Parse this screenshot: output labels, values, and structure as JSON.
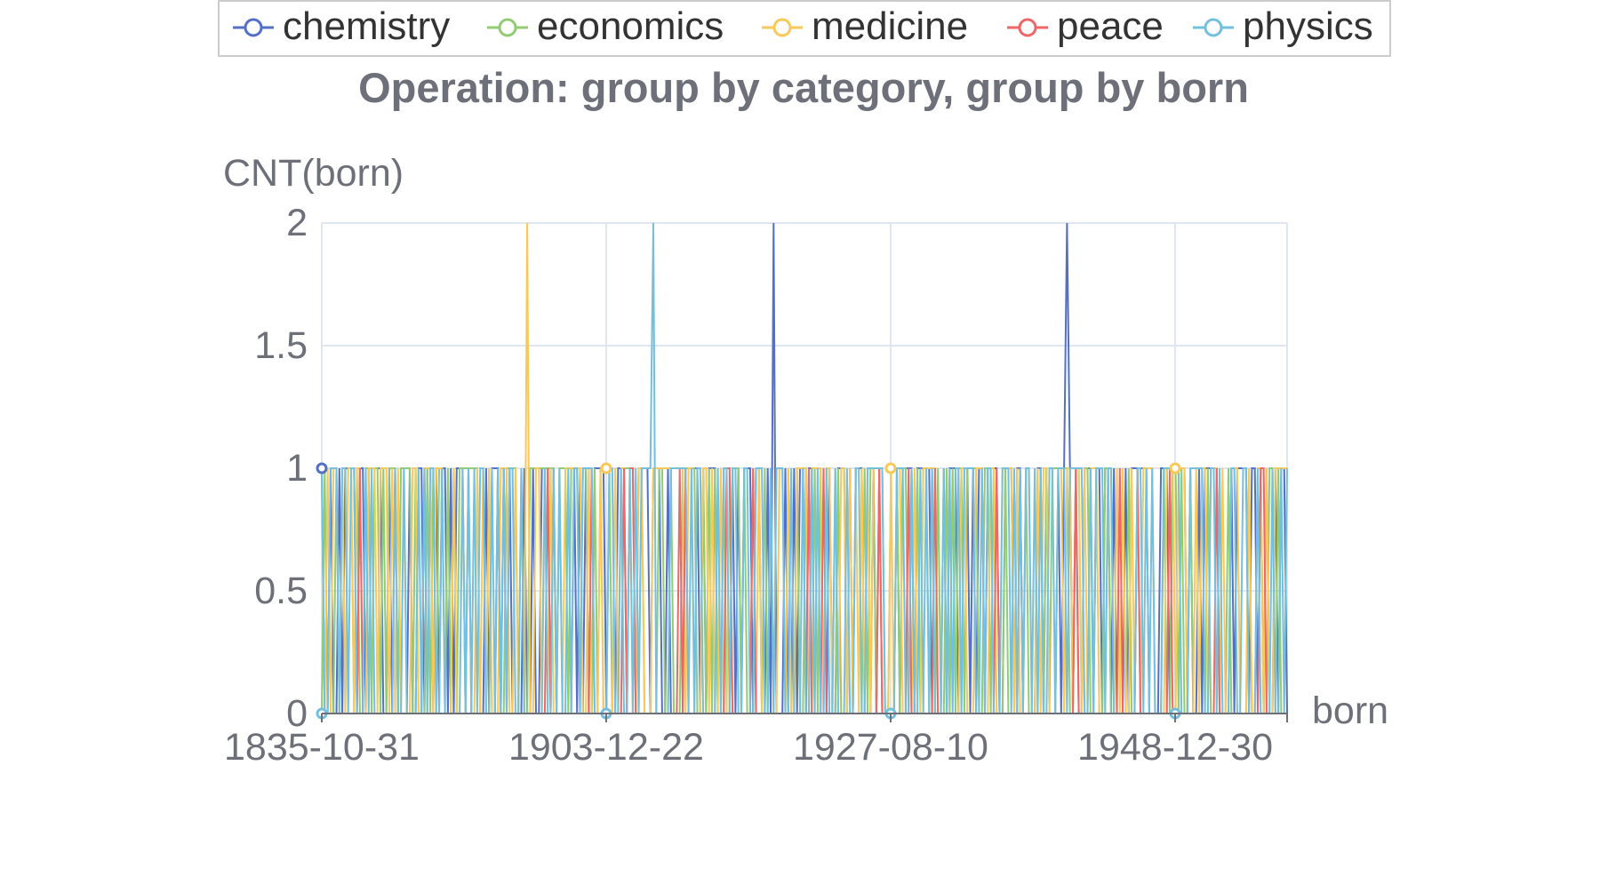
{
  "chart_data": {
    "type": "line",
    "title": "Operation: group by category, group by born",
    "xlabel": "born",
    "ylabel": "CNT(born)",
    "ylim": [
      0,
      2
    ],
    "yticks": [
      "0",
      "0.5",
      "1",
      "1.5",
      "2"
    ],
    "xticks": [
      "1835-10-31",
      "1903-12-22",
      "1927-08-10",
      "1948-12-30"
    ],
    "grid": true,
    "legend_position": "top",
    "series": [
      {
        "name": "chemistry",
        "color": "#5470c6",
        "spikes_to_2_at": [
          0.468,
          0.771
        ]
      },
      {
        "name": "economics",
        "color": "#91cc75",
        "spikes_to_2_at": []
      },
      {
        "name": "medicine",
        "color": "#fac858",
        "spikes_to_2_at": [
          0.213
        ]
      },
      {
        "name": "peace",
        "color": "#ee6666",
        "spikes_to_2_at": []
      },
      {
        "name": "physics",
        "color": "#73c0de",
        "spikes_to_2_at": [
          0.344
        ]
      }
    ],
    "note": "Each series oscillates between 0 and 1 over the born-date axis; occasional values of 2."
  }
}
